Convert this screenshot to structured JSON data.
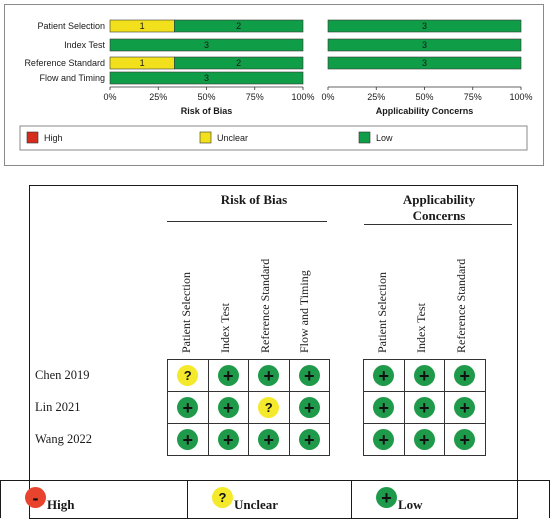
{
  "chart_data": [
    {
      "type": "bar",
      "orientation": "horizontal",
      "stacked": true,
      "title": "Risk of Bias",
      "categories": [
        "Patient Selection",
        "Index Test",
        "Reference Standard",
        "Flow and Timing"
      ],
      "series": [
        {
          "name": "High",
          "color": "#d62b1f",
          "values": [
            0,
            0,
            0,
            0
          ]
        },
        {
          "name": "Unclear",
          "color": "#f2e01d",
          "values": [
            1,
            0,
            1,
            0
          ]
        },
        {
          "name": "Low",
          "color": "#0f9d47",
          "values": [
            2,
            3,
            2,
            3
          ]
        }
      ],
      "xticks": [
        "0%",
        "25%",
        "50%",
        "75%",
        "100%"
      ],
      "xlim": [
        0,
        100
      ]
    },
    {
      "type": "bar",
      "orientation": "horizontal",
      "stacked": true,
      "title": "Applicability Concerns",
      "categories": [
        "Patient Selection",
        "Index Test",
        "Reference Standard"
      ],
      "series": [
        {
          "name": "High",
          "color": "#d62b1f",
          "values": [
            0,
            0,
            0
          ]
        },
        {
          "name": "Unclear",
          "color": "#f2e01d",
          "values": [
            0,
            0,
            0
          ]
        },
        {
          "name": "Low",
          "color": "#0f9d47",
          "values": [
            3,
            3,
            3
          ]
        }
      ],
      "xticks": [
        "0%",
        "25%",
        "50%",
        "75%",
        "100%"
      ],
      "xlim": [
        0,
        100
      ]
    },
    {
      "type": "table",
      "title": "Risk of Bias / Applicability Concerns traffic-light table",
      "studies": [
        "Chen 2019",
        "Lin 2021",
        "Wang 2022"
      ],
      "risk_columns": [
        "Patient Selection",
        "Index Test",
        "Reference Standard",
        "Flow and Timing"
      ],
      "applicability_columns": [
        "Patient Selection",
        "Index Test",
        "Reference Standard"
      ],
      "risk": [
        [
          "unclear",
          "low",
          "low",
          "low"
        ],
        [
          "low",
          "low",
          "unclear",
          "low"
        ],
        [
          "low",
          "low",
          "low",
          "low"
        ]
      ],
      "applicability": [
        [
          "low",
          "low",
          "low"
        ],
        [
          "low",
          "low",
          "low"
        ],
        [
          "low",
          "low",
          "low"
        ]
      ]
    }
  ],
  "summary_legend": [
    {
      "label": "High",
      "color": "#d62b1f"
    },
    {
      "label": "Unclear",
      "color": "#f2e01d"
    },
    {
      "label": "Low",
      "color": "#0f9d47"
    }
  ],
  "table_headings": {
    "risk": "Risk of Bias",
    "applicability_line1": "Applicability",
    "applicability_line2": "Concerns"
  },
  "symbols": {
    "low": "+",
    "unclear": "?",
    "high": "-"
  },
  "table_legend": [
    {
      "key": "high",
      "label": "High"
    },
    {
      "key": "unclear",
      "label": "Unclear"
    },
    {
      "key": "low",
      "label": "Low"
    }
  ]
}
